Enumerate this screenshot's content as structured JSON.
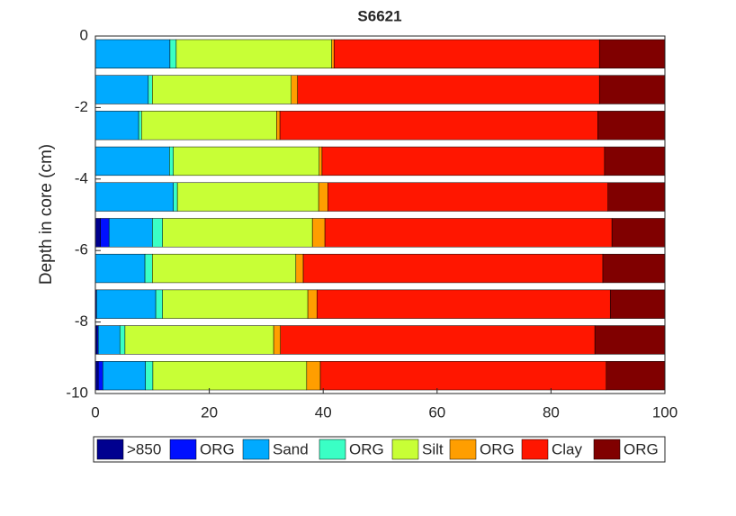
{
  "chart_data": {
    "type": "bar",
    "orientation": "horizontal",
    "stacked": true,
    "title": "S6621",
    "ylabel": "Depth in core (cm)",
    "y": [
      -0.5,
      -1.5,
      -2.5,
      -3.5,
      -4.5,
      -5.5,
      -6.5,
      -7.5,
      -8.5,
      -9.5
    ],
    "xlim": [
      0,
      100
    ],
    "xticks": [
      0,
      20,
      40,
      60,
      80,
      100
    ],
    "ylim": [
      -10,
      0
    ],
    "yticks": [
      0,
      -2,
      -4,
      -6,
      -8,
      -10
    ],
    "legend": "bottom",
    "series": [
      {
        "name": ">850",
        "color": "#00008f",
        "values": [
          0,
          0,
          0,
          0,
          0,
          0.9,
          0,
          0.2,
          0.3,
          0.5
        ]
      },
      {
        "name": "ORG",
        "color": "#0010ff",
        "values": [
          0,
          0,
          0,
          0,
          0,
          1.5,
          0,
          0,
          0.2,
          0.8
        ]
      },
      {
        "name": "Sand",
        "color": "#00aaff",
        "values": [
          13.1,
          9.3,
          7.6,
          13.0,
          13.7,
          7.6,
          8.7,
          10.4,
          3.8,
          7.5
        ]
      },
      {
        "name": "ORG",
        "color": "#3affc5",
        "values": [
          1.1,
          0.7,
          0.5,
          0.7,
          0.7,
          1.8,
          1.3,
          1.2,
          0.9,
          1.3
        ]
      },
      {
        "name": "Silt",
        "color": "#c8ff36",
        "values": [
          27.3,
          24.4,
          23.7,
          25.6,
          24.8,
          26.3,
          25.2,
          25.5,
          26.1,
          27.0
        ]
      },
      {
        "name": "ORG",
        "color": "#ff9e00",
        "values": [
          0.4,
          1.1,
          0.6,
          0.5,
          1.6,
          2.2,
          1.3,
          1.6,
          1.2,
          2.4
        ]
      },
      {
        "name": "Clay",
        "color": "#ff1600",
        "values": [
          46.6,
          53.0,
          55.8,
          49.6,
          49.2,
          50.4,
          52.6,
          51.5,
          55.2,
          50.2
        ]
      },
      {
        "name": "ORG",
        "color": "#800000",
        "values": [
          11.5,
          11.5,
          11.8,
          10.6,
          10.0,
          9.3,
          10.9,
          9.6,
          12.3,
          10.3
        ]
      }
    ]
  }
}
